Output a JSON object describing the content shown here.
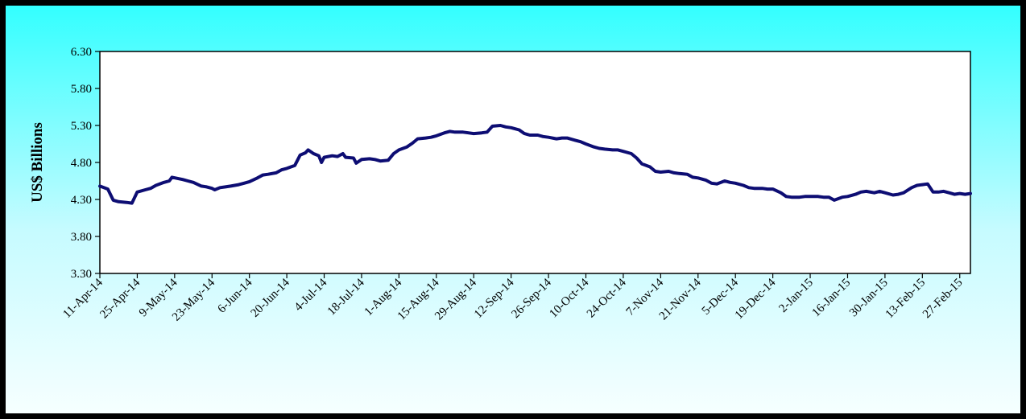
{
  "chart_data": {
    "type": "line",
    "title": "",
    "xlabel": "",
    "ylabel": "US$ Billions",
    "ylim": [
      3.3,
      6.3
    ],
    "yticks": [
      "3.30",
      "3.80",
      "4.30",
      "4.80",
      "5.30",
      "5.80",
      "6.30"
    ],
    "grid": false,
    "legend": "none",
    "line_color": "#0d0d73",
    "plot_background": "#ffffff",
    "frame_background": [
      "#33ffff",
      "#f6ffff"
    ],
    "x_start": "2014-04-11",
    "x_end": "2015-03-03",
    "xticks": [
      {
        "date": "2014-04-11",
        "label": "11-Apr-14"
      },
      {
        "date": "2014-04-25",
        "label": "25-Apr-14"
      },
      {
        "date": "2014-05-09",
        "label": "9-May-14"
      },
      {
        "date": "2014-05-23",
        "label": "23-May-14"
      },
      {
        "date": "2014-06-06",
        "label": "6-Jun-14"
      },
      {
        "date": "2014-06-20",
        "label": "20-Jun-14"
      },
      {
        "date": "2014-07-04",
        "label": "4-Jul-14"
      },
      {
        "date": "2014-07-18",
        "label": "18-Jul-14"
      },
      {
        "date": "2014-08-01",
        "label": "1-Aug-14"
      },
      {
        "date": "2014-08-15",
        "label": "15-Aug-14"
      },
      {
        "date": "2014-08-29",
        "label": "29-Aug-14"
      },
      {
        "date": "2014-09-12",
        "label": "12-Sep-14"
      },
      {
        "date": "2014-09-26",
        "label": "26-Sep-14"
      },
      {
        "date": "2014-10-10",
        "label": "10-Oct-14"
      },
      {
        "date": "2014-10-24",
        "label": "24-Oct-14"
      },
      {
        "date": "2014-11-07",
        "label": "7-Nov-14"
      },
      {
        "date": "2014-11-21",
        "label": "21-Nov-14"
      },
      {
        "date": "2014-12-05",
        "label": "5-Dec-14"
      },
      {
        "date": "2014-12-19",
        "label": "19-Dec-14"
      },
      {
        "date": "2015-01-02",
        "label": "2-Jan-15"
      },
      {
        "date": "2015-01-16",
        "label": "16-Jan-15"
      },
      {
        "date": "2015-01-30",
        "label": "30-Jan-15"
      },
      {
        "date": "2015-02-13",
        "label": "13-Feb-15"
      },
      {
        "date": "2015-02-27",
        "label": "27-Feb-15"
      }
    ],
    "points": [
      [
        "2014-04-11",
        4.48
      ],
      [
        "2014-04-14",
        4.44
      ],
      [
        "2014-04-16",
        4.29
      ],
      [
        "2014-04-18",
        4.27
      ],
      [
        "2014-04-21",
        4.26
      ],
      [
        "2014-04-23",
        4.25
      ],
      [
        "2014-04-25",
        4.4
      ],
      [
        "2014-04-28",
        4.43
      ],
      [
        "2014-04-30",
        4.45
      ],
      [
        "2014-05-02",
        4.49
      ],
      [
        "2014-05-05",
        4.53
      ],
      [
        "2014-05-07",
        4.55
      ],
      [
        "2014-05-08",
        4.6
      ],
      [
        "2014-05-12",
        4.57
      ],
      [
        "2014-05-14",
        4.55
      ],
      [
        "2014-05-16",
        4.53
      ],
      [
        "2014-05-19",
        4.48
      ],
      [
        "2014-05-21",
        4.47
      ],
      [
        "2014-05-23",
        4.45
      ],
      [
        "2014-05-24",
        4.43
      ],
      [
        "2014-05-26",
        4.46
      ],
      [
        "2014-05-28",
        4.47
      ],
      [
        "2014-05-30",
        4.48
      ],
      [
        "2014-06-02",
        4.5
      ],
      [
        "2014-06-04",
        4.52
      ],
      [
        "2014-06-06",
        4.54
      ],
      [
        "2014-06-09",
        4.59
      ],
      [
        "2014-06-11",
        4.63
      ],
      [
        "2014-06-13",
        4.64
      ],
      [
        "2014-06-16",
        4.66
      ],
      [
        "2014-06-18",
        4.7
      ],
      [
        "2014-06-20",
        4.72
      ],
      [
        "2014-06-23",
        4.76
      ],
      [
        "2014-06-25",
        4.9
      ],
      [
        "2014-06-27",
        4.93
      ],
      [
        "2014-06-28",
        4.97
      ],
      [
        "2014-06-30",
        4.92
      ],
      [
        "2014-07-02",
        4.89
      ],
      [
        "2014-07-03",
        4.8
      ],
      [
        "2014-07-04",
        4.87
      ],
      [
        "2014-07-07",
        4.89
      ],
      [
        "2014-07-09",
        4.88
      ],
      [
        "2014-07-11",
        4.92
      ],
      [
        "2014-07-12",
        4.87
      ],
      [
        "2014-07-15",
        4.86
      ],
      [
        "2014-07-16",
        4.79
      ],
      [
        "2014-07-18",
        4.84
      ],
      [
        "2014-07-21",
        4.85
      ],
      [
        "2014-07-23",
        4.84
      ],
      [
        "2014-07-25",
        4.82
      ],
      [
        "2014-07-28",
        4.83
      ],
      [
        "2014-07-30",
        4.92
      ],
      [
        "2014-08-01",
        4.97
      ],
      [
        "2014-08-04",
        5.01
      ],
      [
        "2014-08-06",
        5.06
      ],
      [
        "2014-08-08",
        5.12
      ],
      [
        "2014-08-11",
        5.13
      ],
      [
        "2014-08-13",
        5.14
      ],
      [
        "2014-08-15",
        5.16
      ],
      [
        "2014-08-18",
        5.2
      ],
      [
        "2014-08-20",
        5.22
      ],
      [
        "2014-08-22",
        5.21
      ],
      [
        "2014-08-25",
        5.21
      ],
      [
        "2014-08-27",
        5.2
      ],
      [
        "2014-08-29",
        5.19
      ],
      [
        "2014-09-01",
        5.2
      ],
      [
        "2014-09-03",
        5.21
      ],
      [
        "2014-09-05",
        5.29
      ],
      [
        "2014-09-08",
        5.3
      ],
      [
        "2014-09-10",
        5.28
      ],
      [
        "2014-09-12",
        5.27
      ],
      [
        "2014-09-15",
        5.24
      ],
      [
        "2014-09-17",
        5.19
      ],
      [
        "2014-09-19",
        5.17
      ],
      [
        "2014-09-22",
        5.17
      ],
      [
        "2014-09-24",
        5.15
      ],
      [
        "2014-09-26",
        5.14
      ],
      [
        "2014-09-29",
        5.12
      ],
      [
        "2014-10-01",
        5.13
      ],
      [
        "2014-10-03",
        5.13
      ],
      [
        "2014-10-06",
        5.1
      ],
      [
        "2014-10-08",
        5.08
      ],
      [
        "2014-10-10",
        5.05
      ],
      [
        "2014-10-13",
        5.01
      ],
      [
        "2014-10-15",
        4.99
      ],
      [
        "2014-10-17",
        4.98
      ],
      [
        "2014-10-20",
        4.97
      ],
      [
        "2014-10-22",
        4.97
      ],
      [
        "2014-10-24",
        4.95
      ],
      [
        "2014-10-27",
        4.92
      ],
      [
        "2014-10-29",
        4.86
      ],
      [
        "2014-10-31",
        4.78
      ],
      [
        "2014-11-03",
        4.74
      ],
      [
        "2014-11-05",
        4.68
      ],
      [
        "2014-11-07",
        4.67
      ],
      [
        "2014-11-10",
        4.68
      ],
      [
        "2014-11-12",
        4.66
      ],
      [
        "2014-11-14",
        4.65
      ],
      [
        "2014-11-17",
        4.64
      ],
      [
        "2014-11-19",
        4.6
      ],
      [
        "2014-11-21",
        4.59
      ],
      [
        "2014-11-24",
        4.56
      ],
      [
        "2014-11-26",
        4.52
      ],
      [
        "2014-11-28",
        4.51
      ],
      [
        "2014-12-01",
        4.55
      ],
      [
        "2014-12-03",
        4.53
      ],
      [
        "2014-12-05",
        4.52
      ],
      [
        "2014-12-08",
        4.49
      ],
      [
        "2014-12-10",
        4.46
      ],
      [
        "2014-12-12",
        4.45
      ],
      [
        "2014-12-15",
        4.45
      ],
      [
        "2014-12-17",
        4.44
      ],
      [
        "2014-12-19",
        4.44
      ],
      [
        "2014-12-22",
        4.39
      ],
      [
        "2014-12-24",
        4.34
      ],
      [
        "2014-12-26",
        4.33
      ],
      [
        "2014-12-29",
        4.33
      ],
      [
        "2014-12-31",
        4.34
      ],
      [
        "2015-01-02",
        4.34
      ],
      [
        "2015-01-05",
        4.34
      ],
      [
        "2015-01-07",
        4.33
      ],
      [
        "2015-01-09",
        4.33
      ],
      [
        "2015-01-11",
        4.29
      ],
      [
        "2015-01-14",
        4.33
      ],
      [
        "2015-01-16",
        4.34
      ],
      [
        "2015-01-19",
        4.37
      ],
      [
        "2015-01-21",
        4.4
      ],
      [
        "2015-01-23",
        4.41
      ],
      [
        "2015-01-26",
        4.39
      ],
      [
        "2015-01-28",
        4.41
      ],
      [
        "2015-01-30",
        4.39
      ],
      [
        "2015-02-02",
        4.36
      ],
      [
        "2015-02-04",
        4.37
      ],
      [
        "2015-02-06",
        4.39
      ],
      [
        "2015-02-09",
        4.46
      ],
      [
        "2015-02-11",
        4.49
      ],
      [
        "2015-02-13",
        4.5
      ],
      [
        "2015-02-15",
        4.51
      ],
      [
        "2015-02-17",
        4.4
      ],
      [
        "2015-02-19",
        4.4
      ],
      [
        "2015-02-21",
        4.41
      ],
      [
        "2015-02-23",
        4.39
      ],
      [
        "2015-02-25",
        4.37
      ],
      [
        "2015-02-27",
        4.38
      ],
      [
        "2015-03-01",
        4.37
      ],
      [
        "2015-03-03",
        4.38
      ]
    ]
  }
}
